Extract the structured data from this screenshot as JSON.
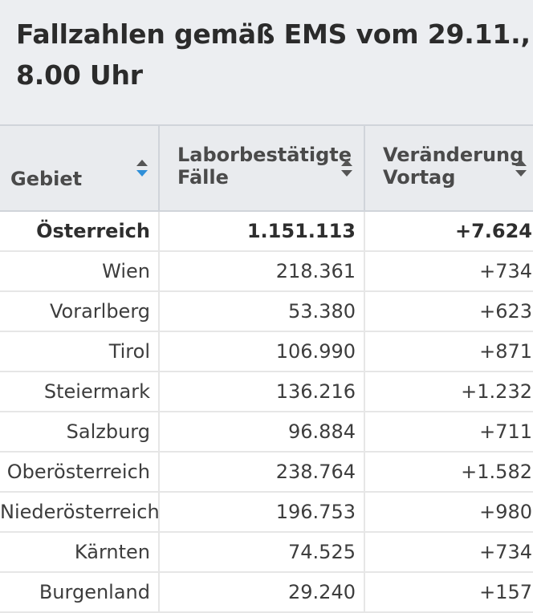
{
  "title": "Fallzahlen gemäß EMS vom 29.11.,\n8.00 Uhr",
  "columns": {
    "region": "Gebiet",
    "cases": "Laborbestätigte\nFälle",
    "change": "Veränderung\nVortag"
  },
  "sort_icons": {
    "region": "sort-ascending-active-icon",
    "cases": "sort-icon",
    "change": "sort-icon"
  },
  "colors": {
    "active_sort": "#2f8fd8",
    "inactive_sort": "#555555",
    "header_bg": "#e9ebee"
  },
  "rows": [
    {
      "region": "Österreich",
      "cases": "1.151.113",
      "change": "+7.624",
      "bold": true
    },
    {
      "region": "Wien",
      "cases": "218.361",
      "change": "+734"
    },
    {
      "region": "Vorarlberg",
      "cases": "53.380",
      "change": "+623"
    },
    {
      "region": "Tirol",
      "cases": "106.990",
      "change": "+871"
    },
    {
      "region": "Steiermark",
      "cases": "136.216",
      "change": "+1.232"
    },
    {
      "region": "Salzburg",
      "cases": "96.884",
      "change": "+711"
    },
    {
      "region": "Oberösterreich",
      "cases": "238.764",
      "change": "+1.582"
    },
    {
      "region": "Niederösterreich",
      "cases": "196.753",
      "change": "+980"
    },
    {
      "region": "Kärnten",
      "cases": "74.525",
      "change": "+734"
    },
    {
      "region": "Burgenland",
      "cases": "29.240",
      "change": "+157"
    }
  ]
}
